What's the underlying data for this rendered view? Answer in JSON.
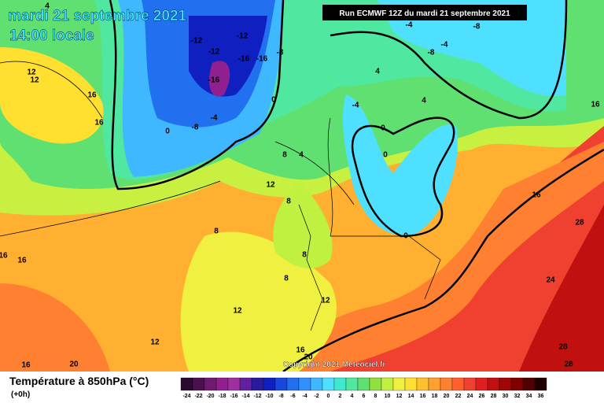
{
  "header": {
    "date": "mardi 21 septembre 2021",
    "time": "14:00 locale",
    "run": "Run ECMWF 12Z du mardi 21 septembre 2021"
  },
  "copyright": "Copyright 2021 Meteociel.fr",
  "legend": {
    "title": "Température à 850hPa (°C)",
    "step": "(+0h)",
    "ticks": [
      -24,
      -22,
      -20,
      -18,
      -16,
      -14,
      -12,
      -10,
      -8,
      -6,
      -4,
      -2,
      0,
      2,
      4,
      6,
      8,
      10,
      12,
      14,
      16,
      18,
      20,
      22,
      24,
      26,
      28,
      30,
      32,
      34,
      36
    ],
    "colors": [
      "#2a0a30",
      "#4a1050",
      "#701a70",
      "#902090",
      "#a030a0",
      "#6020a0",
      "#2a1aa0",
      "#1020c0",
      "#1848e0",
      "#2070f0",
      "#3090ff",
      "#40b8ff",
      "#50e0ff",
      "#40e8d0",
      "#50e8a0",
      "#60e070",
      "#90e040",
      "#c0f040",
      "#f0f040",
      "#ffe030",
      "#ffc030",
      "#ffa030",
      "#ff8030",
      "#ff6030",
      "#f04030",
      "#e02020",
      "#c01010",
      "#a00808",
      "#800000",
      "#500000",
      "#200000"
    ]
  },
  "map": {
    "labels": [
      -12,
      -12,
      -12,
      -16,
      -16,
      -8,
      -16,
      0,
      -8,
      -4,
      0,
      12,
      12,
      16,
      16,
      8,
      4,
      12,
      8,
      8,
      8,
      8,
      12,
      12,
      12,
      16,
      20,
      20,
      16,
      16,
      16,
      16,
      28,
      24,
      28,
      28,
      16,
      -8,
      -4,
      -4,
      -8,
      4,
      4,
      -4,
      0,
      0,
      0,
      4
    ]
  }
}
